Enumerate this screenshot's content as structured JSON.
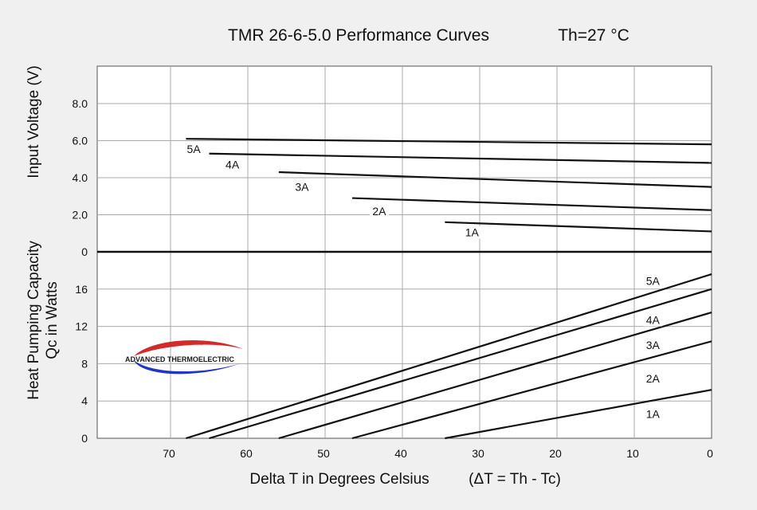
{
  "chart_data": {
    "type": "line",
    "title": "TMR 26-6-5.0 Performance Curves",
    "title_condition": "Th=27 °C",
    "xlabel": "Delta T in Degrees Celsius",
    "xlabel_formula": "(ΔT = Th - Tc)",
    "x_ticks": [
      70,
      60,
      50,
      40,
      30,
      20,
      10,
      0
    ],
    "x_reversed": true,
    "xlim": [
      80,
      0
    ],
    "logo_text": "ADVANCED THERMOELECTRIC",
    "voltage_panel": {
      "ylabel": "Input Voltage (V)",
      "ylim": [
        0,
        10
      ],
      "y_ticks": [
        0,
        2.0,
        4.0,
        6.0,
        8.0
      ],
      "y_tick_labels": [
        "0",
        "2.0",
        "4.0",
        "6.0",
        "8.0"
      ],
      "series": [
        {
          "name": "5A",
          "x": [
            68,
            0
          ],
          "values": [
            6.1,
            5.8
          ]
        },
        {
          "name": "4A",
          "x": [
            65,
            0
          ],
          "values": [
            5.3,
            4.8
          ]
        },
        {
          "name": "3A",
          "x": [
            56,
            0
          ],
          "values": [
            4.3,
            3.5
          ]
        },
        {
          "name": "2A",
          "x": [
            46.5,
            0
          ],
          "values": [
            2.9,
            2.25
          ]
        },
        {
          "name": "1A",
          "x": [
            34.5,
            0
          ],
          "values": [
            1.6,
            1.1
          ]
        }
      ],
      "labels": [
        {
          "text": "5A",
          "x": 67,
          "y": 5.55
        },
        {
          "text": "4A",
          "x": 62,
          "y": 4.7
        },
        {
          "text": "3A",
          "x": 53,
          "y": 3.5
        },
        {
          "text": "2A",
          "x": 43,
          "y": 2.2
        },
        {
          "text": "1A",
          "x": 31,
          "y": 1.05
        }
      ]
    },
    "capacity_panel": {
      "ylabel_line1": "Heat Pumping Capacity",
      "ylabel_line2": "Qc in Watts",
      "ylim": [
        0,
        20
      ],
      "y_ticks": [
        0,
        4,
        8,
        12,
        16
      ],
      "y_tick_labels": [
        "0",
        "4",
        "8",
        "12",
        "16"
      ],
      "series": [
        {
          "name": "5A",
          "x": [
            68,
            0
          ],
          "values": [
            0,
            17.6
          ]
        },
        {
          "name": "4A",
          "x": [
            65,
            0
          ],
          "values": [
            0,
            16.0
          ]
        },
        {
          "name": "3A",
          "x": [
            56,
            0
          ],
          "values": [
            0,
            13.5
          ]
        },
        {
          "name": "2A",
          "x": [
            46.5,
            0
          ],
          "values": [
            0,
            10.4
          ]
        },
        {
          "name": "1A",
          "x": [
            34.5,
            0
          ],
          "values": [
            0,
            5.2
          ]
        }
      ],
      "labels": [
        {
          "text": "5A",
          "x": 7.6,
          "y": 16.9
        },
        {
          "text": "4A",
          "x": 7.6,
          "y": 12.7
        },
        {
          "text": "3A",
          "x": 7.6,
          "y": 10.0
        },
        {
          "text": "2A",
          "x": 7.6,
          "y": 6.4
        },
        {
          "text": "1A",
          "x": 7.6,
          "y": 2.6
        }
      ]
    }
  }
}
